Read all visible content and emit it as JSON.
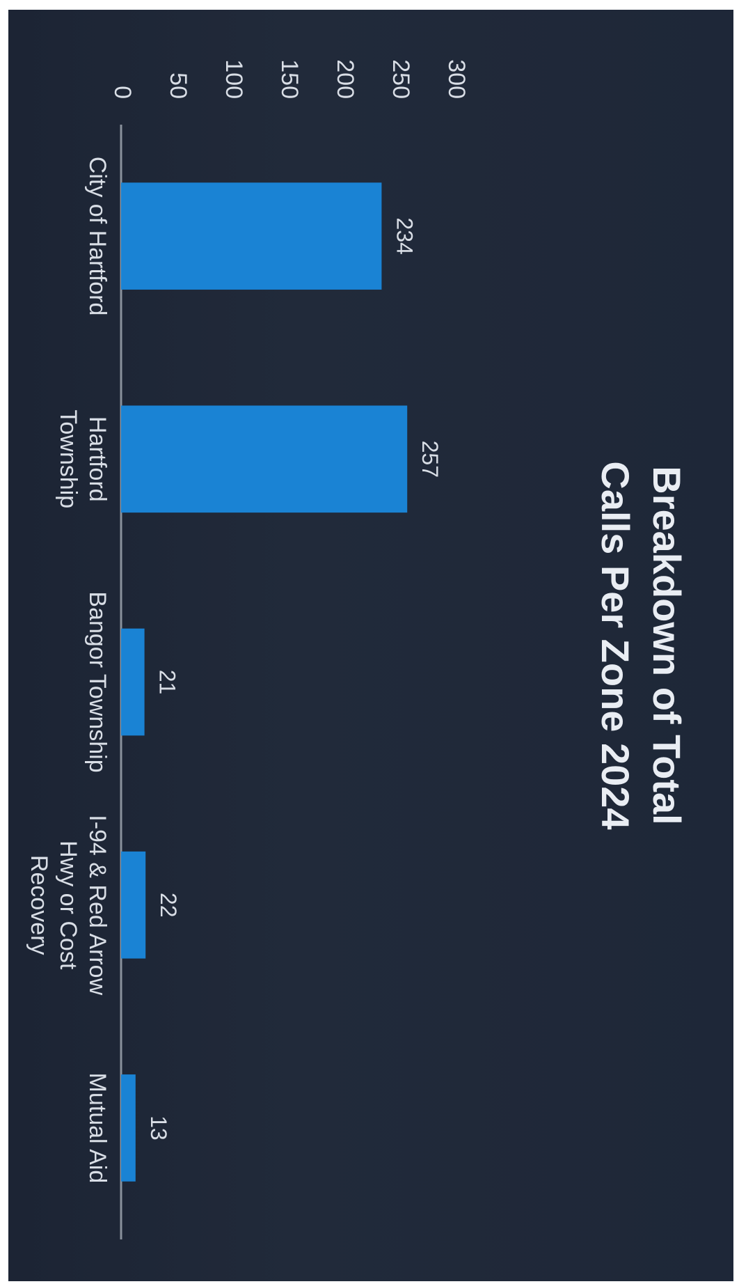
{
  "chart_data": {
    "type": "bar",
    "title": "Breakdown of Total Calls Per Zone 2024",
    "title_lines": [
      "Breakdown of Total",
      "Calls Per Zone 2024"
    ],
    "categories": [
      "City of Hartford",
      "Hartford Township",
      "Bangor Township",
      "I-94 & Red Arrow Hwy or Cost Recovery",
      "Mutual Aid"
    ],
    "category_lines": [
      [
        "City of Hartford"
      ],
      [
        "Hartford",
        "Township"
      ],
      [
        "Bangor Township"
      ],
      [
        "I-94 & Red Arrow",
        "Hwy or Cost",
        "Recovery"
      ],
      [
        "Mutual Aid"
      ]
    ],
    "values": [
      234,
      257,
      21,
      22,
      13
    ],
    "data_labels": [
      "234",
      "257",
      "21",
      "22",
      "13"
    ],
    "ylim": [
      0,
      300
    ],
    "yticks": [
      "0",
      "50",
      "100",
      "150",
      "200",
      "250",
      "300"
    ],
    "xlabel": "",
    "ylabel": "",
    "grid": false,
    "legend": "none",
    "orientation": "page rotated 90 degrees clockwise",
    "colors": {
      "bar": "#1a83d4",
      "background": "#1f2839",
      "text": "#d9dee6",
      "axis": "#8a919c"
    }
  }
}
